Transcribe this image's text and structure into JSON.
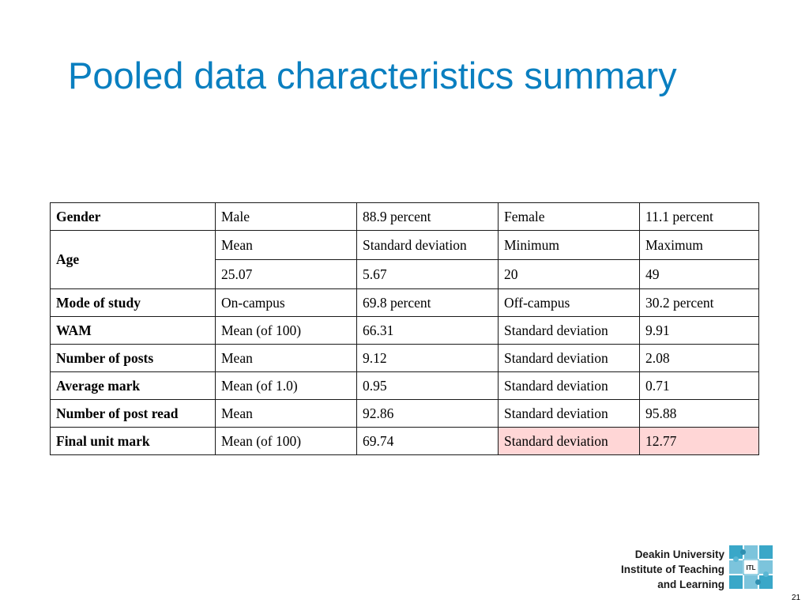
{
  "slide": {
    "title": "Pooled data characteristics summary",
    "page_number": "21"
  },
  "table": {
    "gender": {
      "label": "Gender",
      "c1": "Male",
      "c2": "88.9 percent",
      "c3": "Female",
      "c4": "11.1 percent"
    },
    "age": {
      "label": "Age",
      "headers": [
        "Mean",
        "Standard deviation",
        "Minimum",
        "Maximum"
      ],
      "values": [
        "25.07",
        "5.67",
        "20",
        "49"
      ]
    },
    "mode_of_study": {
      "label": "Mode of study",
      "c1": "On-campus",
      "c2": "69.8 percent",
      "c3": "Off-campus",
      "c4": "30.2 percent"
    },
    "wam": {
      "label": "WAM",
      "c1": "Mean (of 100)",
      "c2": "66.31",
      "c3": "Standard deviation",
      "c4": "9.91"
    },
    "posts": {
      "label": "Number of posts",
      "c1": "Mean",
      "c2": "9.12",
      "c3": "Standard deviation",
      "c4": "2.08"
    },
    "average_mark": {
      "label": "Average mark",
      "c1": "Mean (of 1.0)",
      "c2": "0.95",
      "c3": "Standard deviation",
      "c4": "0.71"
    },
    "posts_read": {
      "label": "Number of post read",
      "c1": "Mean",
      "c2": "92.86",
      "c3": "Standard deviation",
      "c4": "95.88"
    },
    "final_mark": {
      "label": "Final unit mark",
      "c1": "Mean (of 100)",
      "c2": "69.74",
      "c3": "Standard deviation",
      "c4": "12.77"
    },
    "highlight_color": "#ffd6d6"
  },
  "logo": {
    "line1": "Deakin University",
    "line2": "Institute of Teaching",
    "line3": "and Learning",
    "badge": "ITL"
  }
}
